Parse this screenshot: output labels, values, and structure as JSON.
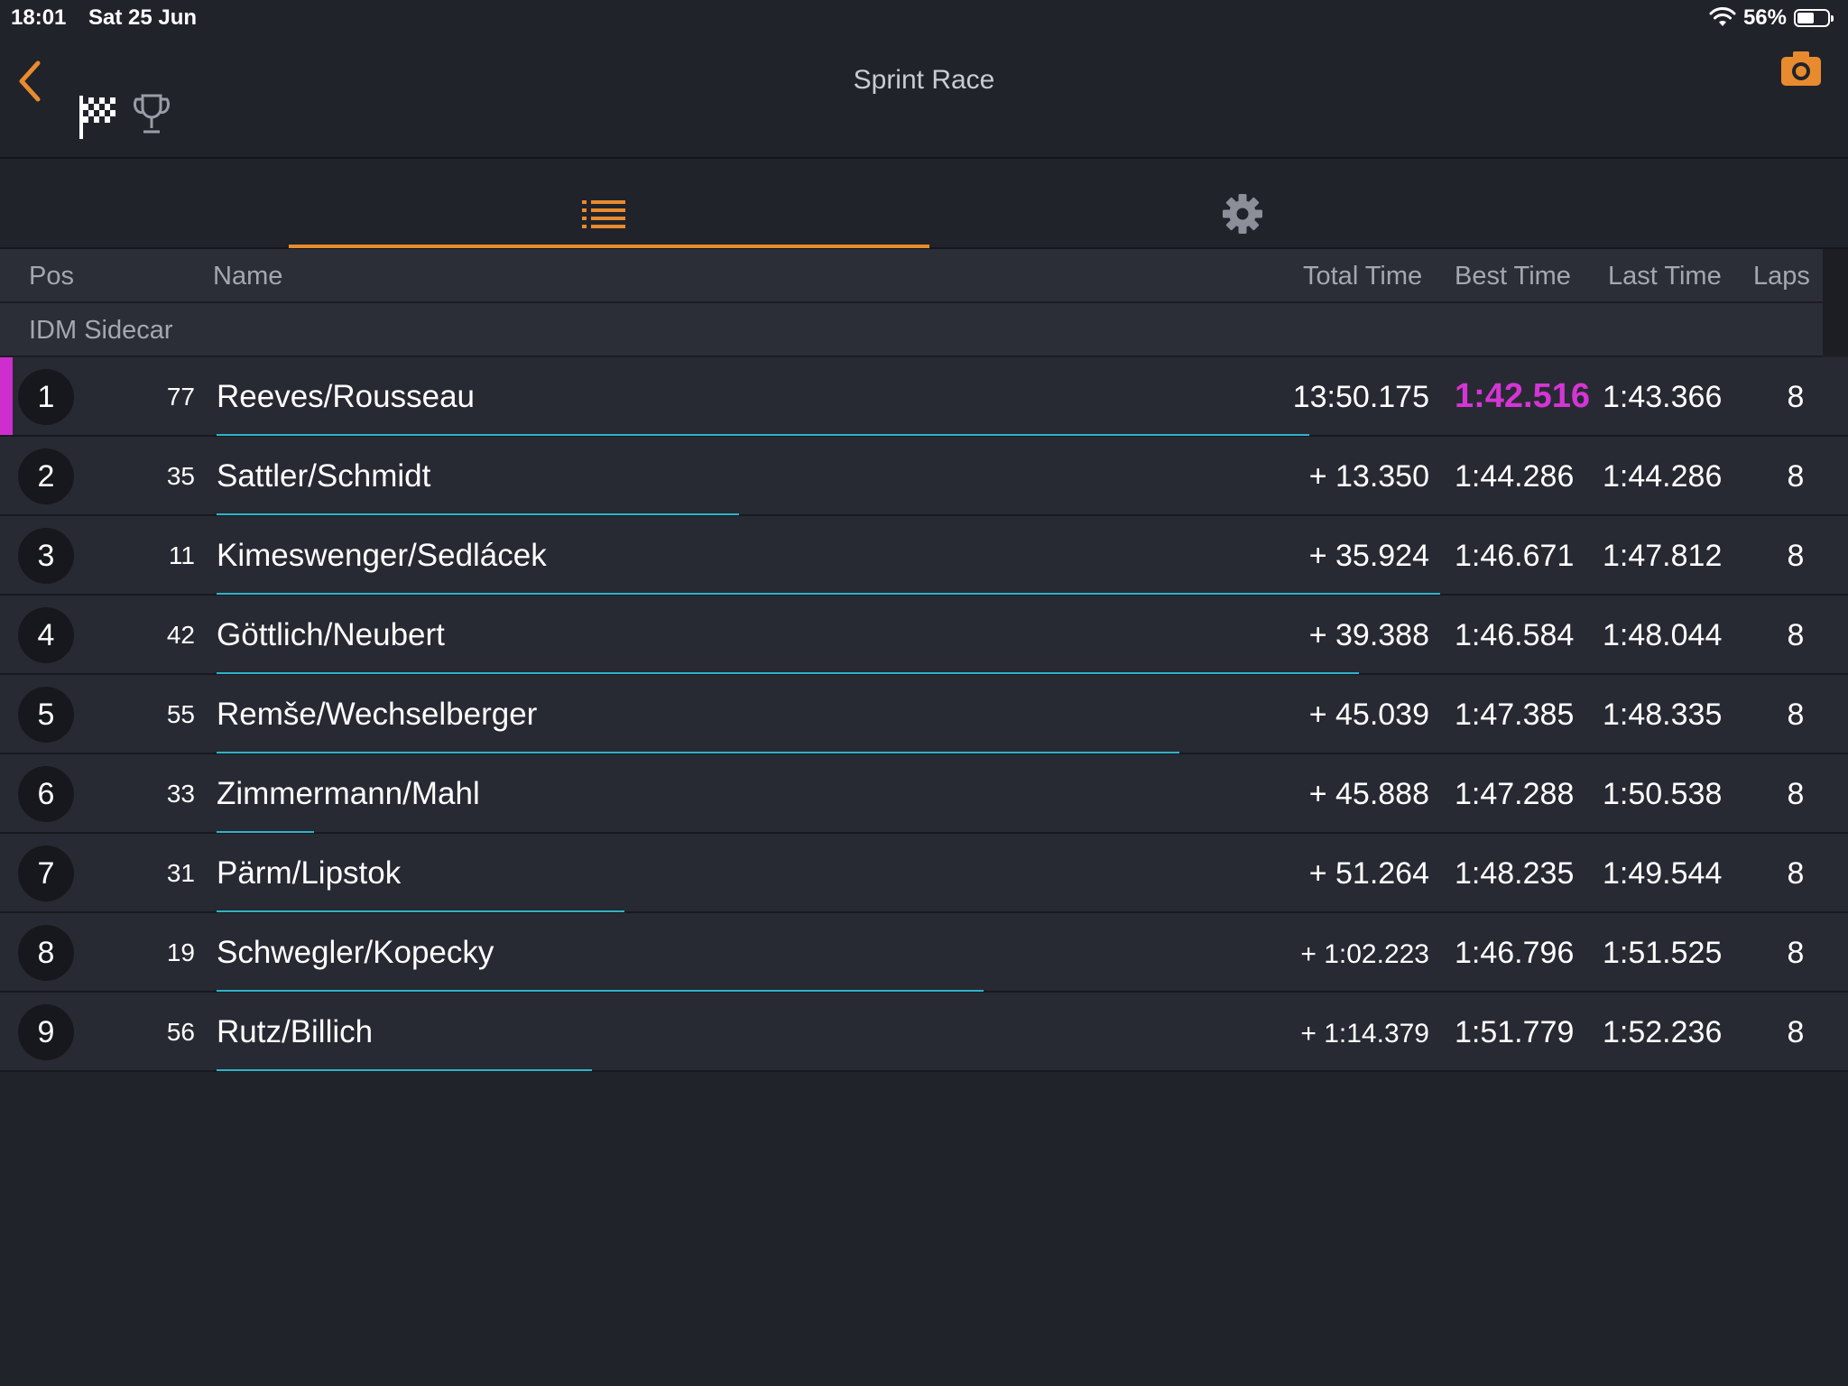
{
  "status_bar": {
    "time": "18:01",
    "date": "Sat 25 Jun",
    "battery": "56%",
    "battery_level": 0.56
  },
  "nav": {
    "title": "Sprint Race",
    "back_icon": "chevron-left-icon",
    "flag_icon": "checkered-flag-icon",
    "trophy_icon": "trophy-icon",
    "camera_icon": "camera-icon"
  },
  "tabs": [
    {
      "icon": "list-icon",
      "active": true
    },
    {
      "icon": "gear-icon",
      "active": false
    }
  ],
  "colors": {
    "accent": "#e88b2e",
    "fastest": "#d535d5",
    "progress": "#2fb3c8",
    "background": "#21232b"
  },
  "table": {
    "headers": {
      "pos": "Pos",
      "name": "Name",
      "total": "Total Time",
      "best": "Best Time",
      "last": "Last Time",
      "laps": "Laps"
    },
    "group": "IDM Sidecar",
    "rows": [
      {
        "pos": "1",
        "num": "77",
        "name": "Reeves/Rousseau",
        "total": "13:50.175",
        "best": "1:42.516",
        "last": "1:43.366",
        "laps": "8",
        "fastest": true,
        "leader": true,
        "progress": 0.67
      },
      {
        "pos": "2",
        "num": "35",
        "name": "Sattler/Schmidt",
        "total": "+ 13.350",
        "best": "1:44.286",
        "last": "1:44.286",
        "laps": "8",
        "progress": 0.32
      },
      {
        "pos": "3",
        "num": "11",
        "name": "Kimeswenger/Sedlácek",
        "total": "+ 35.924",
        "best": "1:46.671",
        "last": "1:47.812",
        "laps": "8",
        "progress": 0.75
      },
      {
        "pos": "4",
        "num": "42",
        "name": "Göttlich/Neubert",
        "total": "+ 39.388",
        "best": "1:46.584",
        "last": "1:48.044",
        "laps": "8",
        "progress": 0.7
      },
      {
        "pos": "5",
        "num": "55",
        "name": "Remše/Wechselberger",
        "total": "+ 45.039",
        "best": "1:47.385",
        "last": "1:48.335",
        "laps": "8",
        "progress": 0.59
      },
      {
        "pos": "6",
        "num": "33",
        "name": "Zimmermann/Mahl",
        "total": "+ 45.888",
        "best": "1:47.288",
        "last": "1:50.538",
        "laps": "8",
        "progress": 0.06
      },
      {
        "pos": "7",
        "num": "31",
        "name": "Pärm/Lipstok",
        "total": "+ 51.264",
        "best": "1:48.235",
        "last": "1:49.544",
        "laps": "8",
        "progress": 0.25
      },
      {
        "pos": "8",
        "num": "19",
        "name": "Schwegler/Kopecky",
        "total": "+ 1:02.223",
        "best": "1:46.796",
        "last": "1:51.525",
        "laps": "8",
        "progress": 0.47
      },
      {
        "pos": "9",
        "num": "56",
        "name": "Rutz/Billich",
        "total": "+ 1:14.379",
        "best": "1:51.779",
        "last": "1:52.236",
        "laps": "8",
        "progress": 0.23
      }
    ]
  }
}
